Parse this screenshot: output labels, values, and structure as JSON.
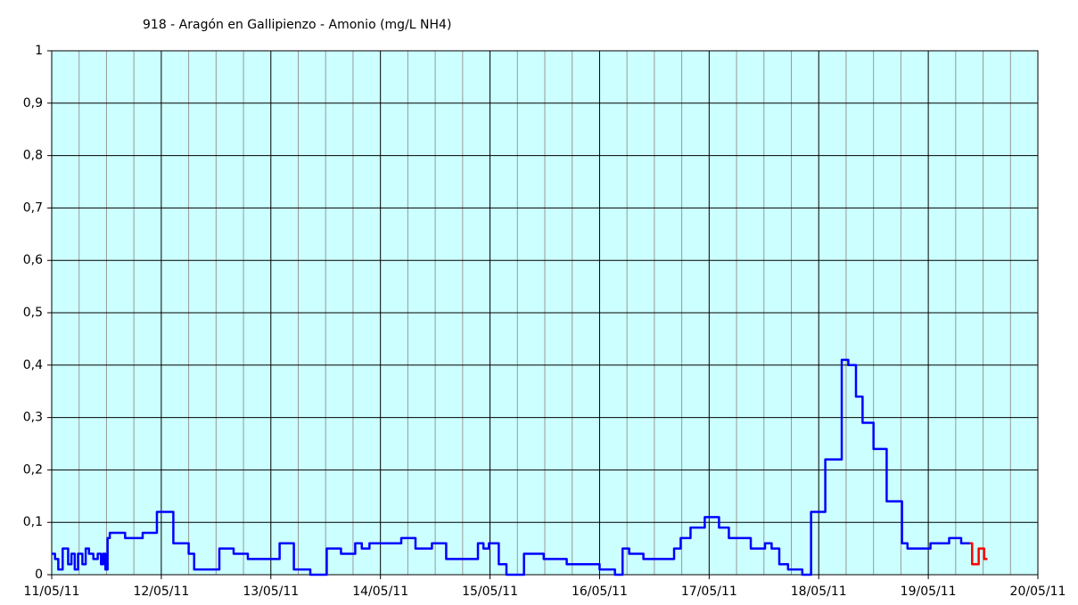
{
  "chart_data": {
    "type": "line",
    "step": true,
    "title": "918 - Aragón en Gallipienzo - Amonio (mg/L NH4)",
    "plot_background": "#ccffff",
    "grid": true,
    "grid_color": "#000000",
    "minor_grid_color": "#999999",
    "xlim": [
      11,
      20
    ],
    "xticks": [
      {
        "value": 11,
        "label": "11/05/11"
      },
      {
        "value": 12,
        "label": "12/05/11"
      },
      {
        "value": 13,
        "label": "13/05/11"
      },
      {
        "value": 14,
        "label": "14/05/11"
      },
      {
        "value": 15,
        "label": "15/05/11"
      },
      {
        "value": 16,
        "label": "16/05/11"
      },
      {
        "value": 17,
        "label": "17/05/11"
      },
      {
        "value": 18,
        "label": "18/05/11"
      },
      {
        "value": 19,
        "label": "19/05/11"
      },
      {
        "value": 20,
        "label": "20/05/11"
      }
    ],
    "xminorticks": [
      11.25,
      11.5,
      11.75,
      12.25,
      12.5,
      12.75,
      13.25,
      13.5,
      13.75,
      14.25,
      14.5,
      14.75,
      15.25,
      15.5,
      15.75,
      16.25,
      16.5,
      16.75,
      17.25,
      17.5,
      17.75,
      18.25,
      18.5,
      18.75,
      19.25,
      19.5,
      19.75
    ],
    "ylim": [
      0,
      1
    ],
    "yticks": [
      0,
      {
        "value": 0.1,
        "label": "0,1"
      },
      {
        "value": 0.2,
        "label": "0,2"
      },
      {
        "value": 0.3,
        "label": "0,3"
      },
      {
        "value": 0.4,
        "label": "0,4"
      },
      {
        "value": 0.5,
        "label": "0,5"
      },
      {
        "value": 0.6,
        "label": "0,6"
      },
      {
        "value": 0.7,
        "label": "0,7"
      },
      {
        "value": 0.8,
        "label": "0,8"
      },
      {
        "value": 0.9,
        "label": "0,9"
      },
      1
    ],
    "series": [
      {
        "color": "#0000ff",
        "x": [
          11.0,
          11.03,
          11.06,
          11.1,
          11.15,
          11.18,
          11.21,
          11.24,
          11.28,
          11.31,
          11.34,
          11.38,
          11.42,
          11.45,
          11.47,
          11.49,
          11.51,
          11.53,
          11.67,
          11.83,
          11.96,
          12.11,
          12.25,
          12.3,
          12.53,
          12.66,
          12.79,
          13.08,
          13.21,
          13.36,
          13.51,
          13.64,
          13.77,
          13.83,
          13.9,
          14.19,
          14.32,
          14.47,
          14.6,
          14.89,
          14.94,
          14.99,
          15.08,
          15.15,
          15.31,
          15.49,
          15.7,
          16.0,
          16.14,
          16.21,
          16.27,
          16.4,
          16.68,
          16.74,
          16.83,
          16.96,
          17.09,
          17.18,
          17.38,
          17.51,
          17.57,
          17.64,
          17.72,
          17.85,
          17.93,
          18.06,
          18.21,
          18.27,
          18.34,
          18.4,
          18.5,
          18.62,
          18.76,
          18.81,
          19.02,
          19.19,
          19.3,
          19.38
        ],
        "values": [
          0.04,
          0.03,
          0.01,
          0.05,
          0.02,
          0.04,
          0.01,
          0.04,
          0.02,
          0.05,
          0.04,
          0.03,
          0.04,
          0.02,
          0.04,
          0.01,
          0.07,
          0.08,
          0.07,
          0.08,
          0.12,
          0.06,
          0.04,
          0.01,
          0.05,
          0.04,
          0.03,
          0.06,
          0.01,
          0,
          0.05,
          0.04,
          0.06,
          0.05,
          0.06,
          0.07,
          0.05,
          0.06,
          0.03,
          0.06,
          0.05,
          0.06,
          0.02,
          0,
          0.04,
          0.03,
          0.02,
          0.01,
          0,
          0.05,
          0.04,
          0.03,
          0.05,
          0.07,
          0.09,
          0.11,
          0.09,
          0.07,
          0.05,
          0.06,
          0.05,
          0.02,
          0.01,
          0,
          0.12,
          0.22,
          0.41,
          0.4,
          0.34,
          0.29,
          0.24,
          0.14,
          0.06,
          0.05,
          0.06,
          0.07,
          0.06,
          0.06
        ]
      },
      {
        "color": "#ff0000",
        "x": [
          19.38,
          19.4,
          19.46,
          19.51,
          19.54
        ],
        "values": [
          0.06,
          0.02,
          0.05,
          0.03,
          0.03
        ]
      }
    ]
  }
}
